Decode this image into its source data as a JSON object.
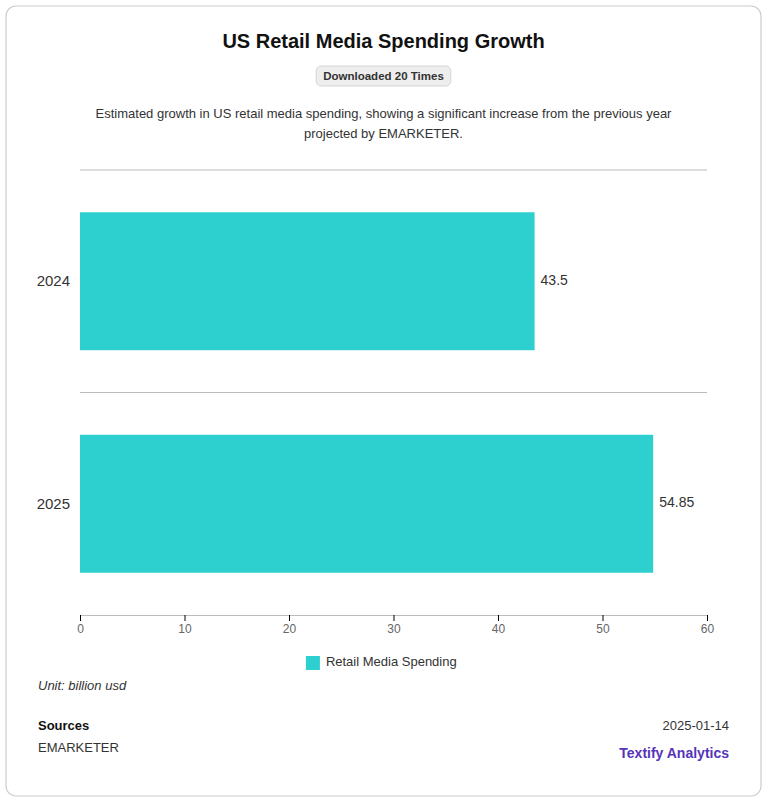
{
  "chart_data": {
    "type": "bar",
    "orientation": "horizontal",
    "title": "US Retail Media Spending Growth",
    "subtitle": "Estimated growth in US retail media spending, showing a significant increase from the previous year\nprojected by EMARKETER.",
    "annotations": [
      "Downloaded 20 Times",
      "Unit: billion usd",
      "Sources",
      "EMARKETER",
      "2025-01-14",
      "Textify Analytics"
    ],
    "categories": [
      "2024",
      "2025"
    ],
    "series": [
      {
        "name": "Retail Media Spending",
        "color": "#2dcfcf",
        "values": [
          43.5,
          54.85
        ]
      }
    ],
    "xlim": [
      0,
      60
    ],
    "xticks": [
      0,
      10,
      20,
      30,
      40,
      50,
      60
    ],
    "data_labels": true,
    "grid": false,
    "legend": "bottom"
  }
}
